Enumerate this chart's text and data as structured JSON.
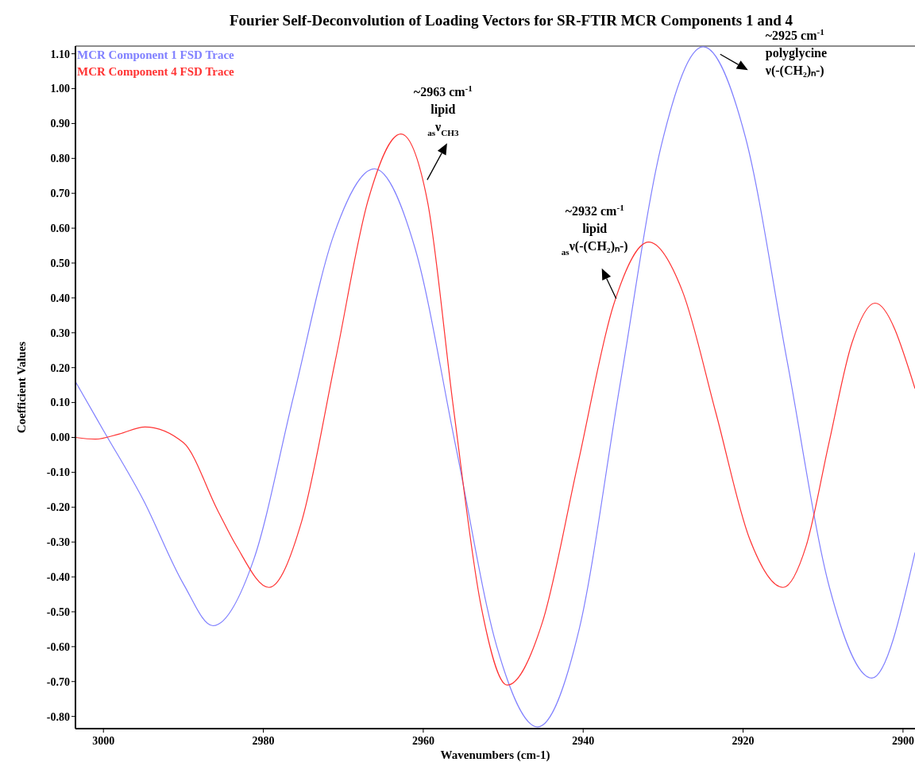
{
  "chart_data": {
    "type": "line",
    "title": "Fourier Self-Deconvolution of Loading Vectors for SR-FTIR MCR Components 1 and 4",
    "xlabel": "Wavenumbers (cm-1)",
    "ylabel": "Coefficient Values",
    "xlim": [
      3003.5,
      2898.5
    ],
    "xticks": [
      3000,
      2980,
      2960,
      2940,
      2920,
      2900
    ],
    "ylim": [
      -0.835,
      1.122
    ],
    "yticks": [
      {
        "value": -0.8,
        "label": "-0.80"
      },
      {
        "value": -0.7,
        "label": "-0.70"
      },
      {
        "value": -0.6,
        "label": "-0.60"
      },
      {
        "value": -0.5,
        "label": "-0.50"
      },
      {
        "value": -0.4,
        "label": "-0.40"
      },
      {
        "value": -0.3,
        "label": "-0.30"
      },
      {
        "value": -0.2,
        "label": "-0.20"
      },
      {
        "value": -0.1,
        "label": "-0.10"
      },
      {
        "value": 0,
        "label": "0.00"
      },
      {
        "value": 0.1,
        "label": "0.10"
      },
      {
        "value": 0.2,
        "label": "0.20"
      },
      {
        "value": 0.3,
        "label": "0.30"
      },
      {
        "value": 0.4,
        "label": "0.40"
      },
      {
        "value": 0.5,
        "label": "0.50"
      },
      {
        "value": 0.6,
        "label": "0.60"
      },
      {
        "value": 0.7,
        "label": "0.70"
      },
      {
        "value": 0.8,
        "label": "0.80"
      },
      {
        "value": 0.9,
        "label": "0.90"
      },
      {
        "value": 1.0,
        "label": "1.00"
      },
      {
        "value": 1.1,
        "label": "1.10"
      }
    ],
    "legend": "top left",
    "grid": false,
    "marker": "none",
    "line_style": "solid",
    "series": [
      {
        "name": "MCR Component 1 FSD Trace",
        "color": "#8080ff",
        "x": [
          3003.5,
          3000,
          2995,
          2990,
          2986.3,
          2981.2,
          2976.2,
          2971.2,
          2966.1,
          2961,
          2955.9,
          2950.8,
          2945.7,
          2940.5,
          2935.4,
          2930.2,
          2925,
          2919.7,
          2914.5,
          2909.2,
          2903.9,
          2898.5
        ],
        "values": [
          0.16,
          0.02,
          -0.18,
          -0.42,
          -0.54,
          -0.35,
          0.12,
          0.58,
          0.77,
          0.54,
          -0.03,
          -0.6,
          -0.83,
          -0.55,
          0.15,
          0.84,
          1.12,
          0.86,
          0.22,
          -0.43,
          -0.69,
          -0.33
        ]
      },
      {
        "name": "MCR Component 4 FSD Trace",
        "color": "#ff3333",
        "x": [
          3003.5,
          3001,
          2998,
          2994.8,
          2990,
          2985.7,
          2983.4,
          2979.3,
          2975.2,
          2971,
          2966.9,
          2962.8,
          2959.5,
          2956.2,
          2952.8,
          2949.5,
          2945.1,
          2940.7,
          2936.2,
          2931.8,
          2927.6,
          2923.4,
          2919.2,
          2915,
          2912.1,
          2909.3,
          2906.4,
          2903.5,
          2898.5
        ],
        "values": [
          0,
          -0.005,
          0.01,
          0.03,
          -0.015,
          -0.21,
          -0.31,
          -0.43,
          -0.24,
          0.22,
          0.68,
          0.87,
          0.68,
          0.08,
          -0.48,
          -0.71,
          -0.53,
          -0.08,
          0.38,
          0.56,
          0.42,
          0.07,
          -0.29,
          -0.43,
          -0.31,
          -0.02,
          0.27,
          0.385,
          0.14
        ]
      }
    ],
    "annotations": [
      "~2963 cm$^{-1}$\nlipid\n$_{as}$ν$_{CH3}$",
      "~2932 cm$^{-1}$\nlipid\n$_{as}$ν(-(CH₂)ₙ-)",
      "~2925 cm$^{-1}$\npolyglycine\nν(-(CH₂)ₙ-)"
    ]
  }
}
